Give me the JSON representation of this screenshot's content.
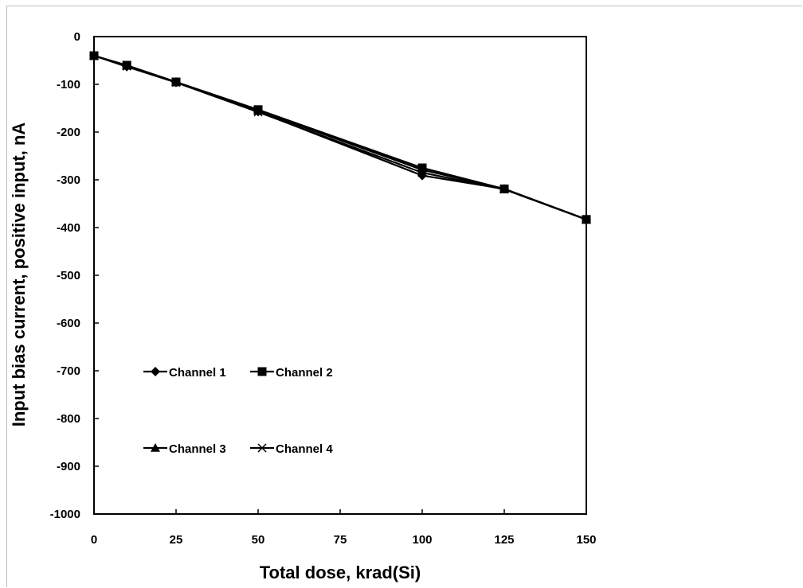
{
  "chart_data": {
    "type": "line",
    "title": "",
    "xlabel": "Total dose, krad(Si)",
    "ylabel": "Input bias current, positive input, nA",
    "xlim": [
      0,
      150
    ],
    "ylim": [
      -1000,
      0
    ],
    "xticks": [
      0,
      25,
      50,
      75,
      100,
      125,
      150
    ],
    "yticks": [
      0,
      -100,
      -200,
      -300,
      -400,
      -500,
      -600,
      -700,
      -800,
      -900,
      -1000
    ],
    "grid": false,
    "legend": "inside plot, lower-left, two columns",
    "x": [
      0,
      10,
      25,
      50,
      100,
      125,
      150
    ],
    "series": [
      {
        "name": "Channel 1",
        "marker": "diamond",
        "values": [
          -40,
          -63,
          -96,
          -157,
          -291,
          -319,
          -383
        ]
      },
      {
        "name": "Channel 2",
        "marker": "square",
        "values": [
          -40,
          -60,
          -95,
          -153,
          -275,
          -319,
          -383
        ]
      },
      {
        "name": "Channel 3",
        "marker": "triangle",
        "values": [
          -40,
          -61,
          -95,
          -155,
          -279,
          -319,
          -383
        ]
      },
      {
        "name": "Channel 4",
        "marker": "x",
        "values": [
          -40,
          -62,
          -96,
          -158,
          -285,
          -320,
          -383
        ]
      }
    ],
    "colors": {
      "lines": "#000000",
      "background": "#ffffff"
    }
  }
}
